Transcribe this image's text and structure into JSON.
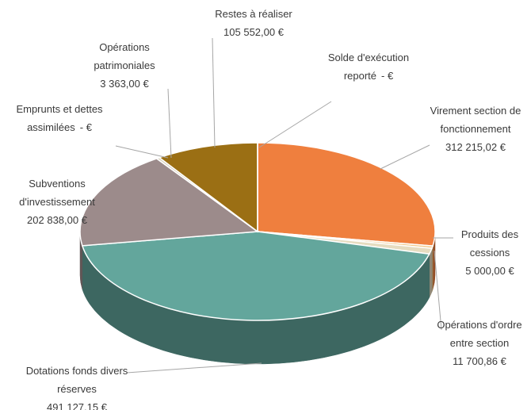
{
  "chart_data": {
    "type": "pie",
    "categories": [
      "Virement section de fonctionnement",
      "Produits des cessions",
      "Opérations d'ordre entre section",
      "Dotations fonds divers réserves",
      "Subventions d'investissement",
      "Emprunts et dettes assimilées",
      "Opérations patrimoniales",
      "Restes à réaliser",
      "Solde d'exécution reporté"
    ],
    "values": [
      312215.02,
      5000.0,
      11700.86,
      491127.15,
      202838.0,
      0,
      3363.0,
      105552.0,
      0
    ],
    "value_labels": [
      "312 215,02 €",
      "5 000,00 €",
      "11 700,86 €",
      "491 127,15 €",
      "202 838,00 €",
      "- €",
      "3 363,00 €",
      "105 552,00 €",
      "- €"
    ],
    "colors": [
      "#ef7f3e",
      "#f2c98a",
      "#e6dcc0",
      "#63a69c",
      "#9c8b8b",
      "#c9b8a8",
      "#d8d2c0",
      "#9b6f14",
      "#bfbfbf"
    ]
  }
}
